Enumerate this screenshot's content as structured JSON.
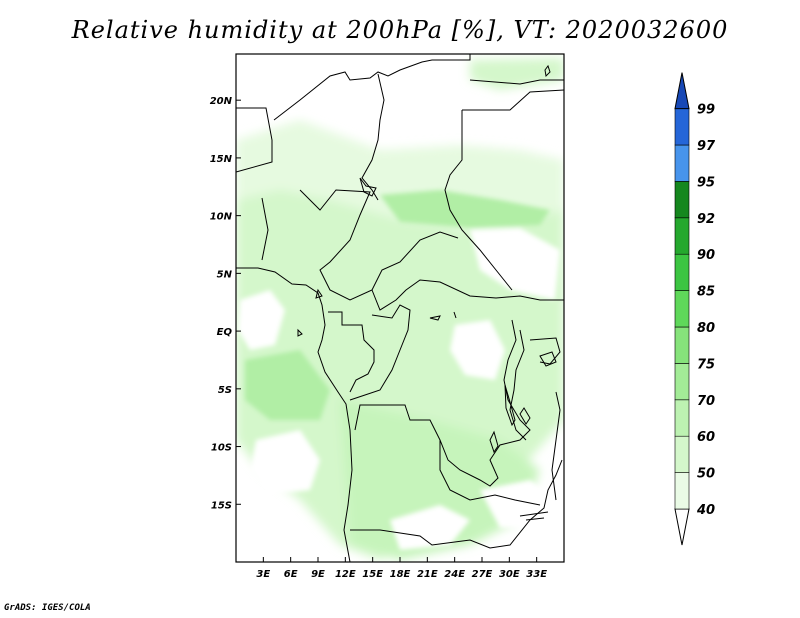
{
  "title": "Relative humidity at 200hPa [%], VT: 2020032600",
  "footer": "GrADS: IGES/COLA",
  "map": {
    "lon_range": [
      0,
      36
    ],
    "lat_range": [
      -20,
      24
    ],
    "x_ticks": [
      {
        "value": 3,
        "label": "3E"
      },
      {
        "value": 6,
        "label": "6E"
      },
      {
        "value": 9,
        "label": "9E"
      },
      {
        "value": 12,
        "label": "12E"
      },
      {
        "value": 15,
        "label": "15E"
      },
      {
        "value": 18,
        "label": "18E"
      },
      {
        "value": 21,
        "label": "21E"
      },
      {
        "value": 24,
        "label": "24E"
      },
      {
        "value": 27,
        "label": "27E"
      },
      {
        "value": 30,
        "label": "30E"
      },
      {
        "value": 33,
        "label": "33E"
      }
    ],
    "y_ticks": [
      {
        "value": 20,
        "label": "20N"
      },
      {
        "value": 15,
        "label": "15N"
      },
      {
        "value": 10,
        "label": "10N"
      },
      {
        "value": 5,
        "label": "5N"
      },
      {
        "value": 0,
        "label": "EQ"
      },
      {
        "value": -5,
        "label": "5S"
      },
      {
        "value": -10,
        "label": "10S"
      },
      {
        "value": -15,
        "label": "15S"
      }
    ]
  },
  "colorbar": {
    "levels": [
      "40",
      "50",
      "60",
      "70",
      "75",
      "80",
      "85",
      "90",
      "92",
      "95",
      "97",
      "99"
    ],
    "colors": [
      "#ffffff",
      "#eafbe6",
      "#d4f7cb",
      "#bdf2b2",
      "#a3ec97",
      "#86e37b",
      "#5fd85a",
      "#3cc542",
      "#25a82e",
      "#15871e",
      "#4794ec",
      "#2566d8",
      "#1748b6"
    ]
  },
  "chart_data": {
    "type": "heatmap",
    "title": "Relative humidity at 200hPa [%], VT: 2020032600",
    "variable": "Relative humidity at 200hPa",
    "units": "%",
    "valid_time": "2020032600",
    "x_ticks": [
      "3E",
      "6E",
      "9E",
      "12E",
      "15E",
      "18E",
      "21E",
      "24E",
      "27E",
      "30E",
      "33E"
    ],
    "y_ticks": [
      "20N",
      "15N",
      "10N",
      "5N",
      "EQ",
      "5S",
      "10S",
      "15S"
    ],
    "contour_levels": [
      40,
      50,
      60,
      70,
      75,
      80,
      85,
      90,
      92,
      95,
      97,
      99
    ]
  }
}
